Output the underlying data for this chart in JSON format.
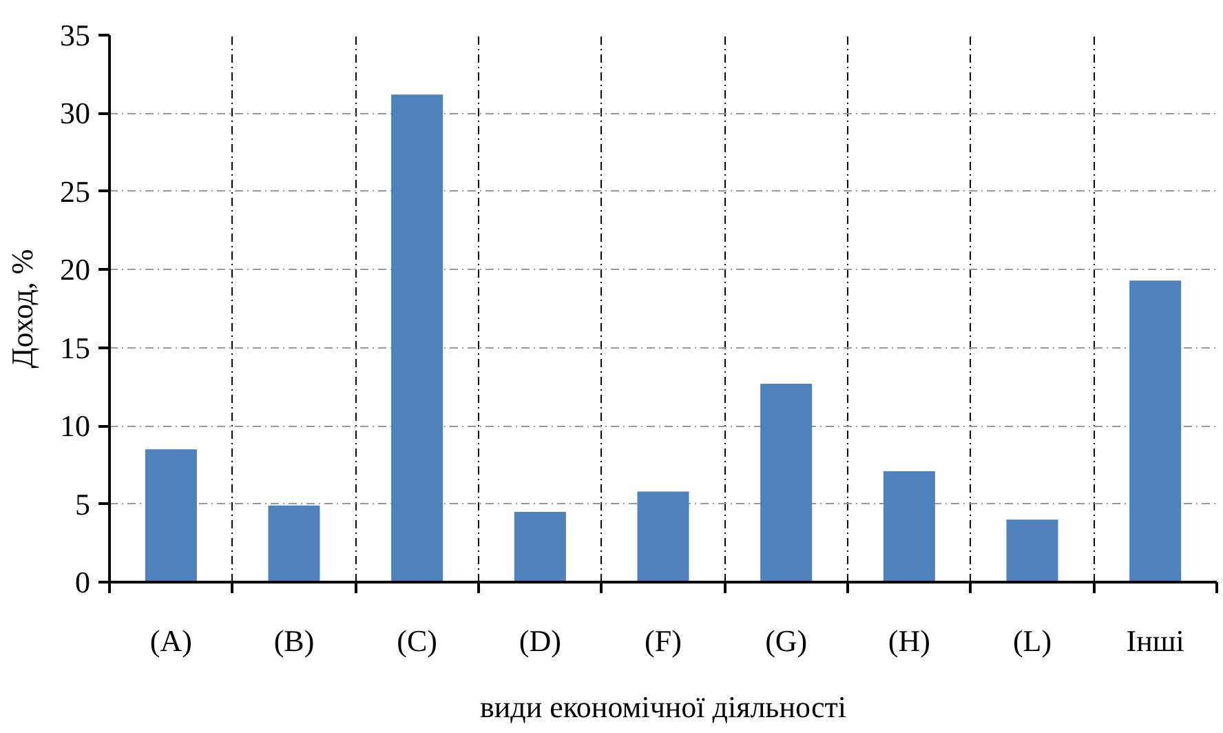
{
  "chart_data": {
    "type": "bar",
    "xlabel": "види економічної діяльності",
    "ylabel": "Доход, %",
    "categories": [
      "(A)",
      "(B)",
      "(C)",
      "(D)",
      "(F)",
      "(G)",
      "(H)",
      "(L)",
      "Інші"
    ],
    "values": [
      8.5,
      4.9,
      31.2,
      4.5,
      5.8,
      12.7,
      7.1,
      4.0,
      19.3
    ],
    "color": "#4f81bd",
    "ylim": [
      0,
      35
    ],
    "yticks": [
      0,
      5,
      10,
      15,
      20,
      25,
      30,
      35
    ],
    "grid": true
  }
}
